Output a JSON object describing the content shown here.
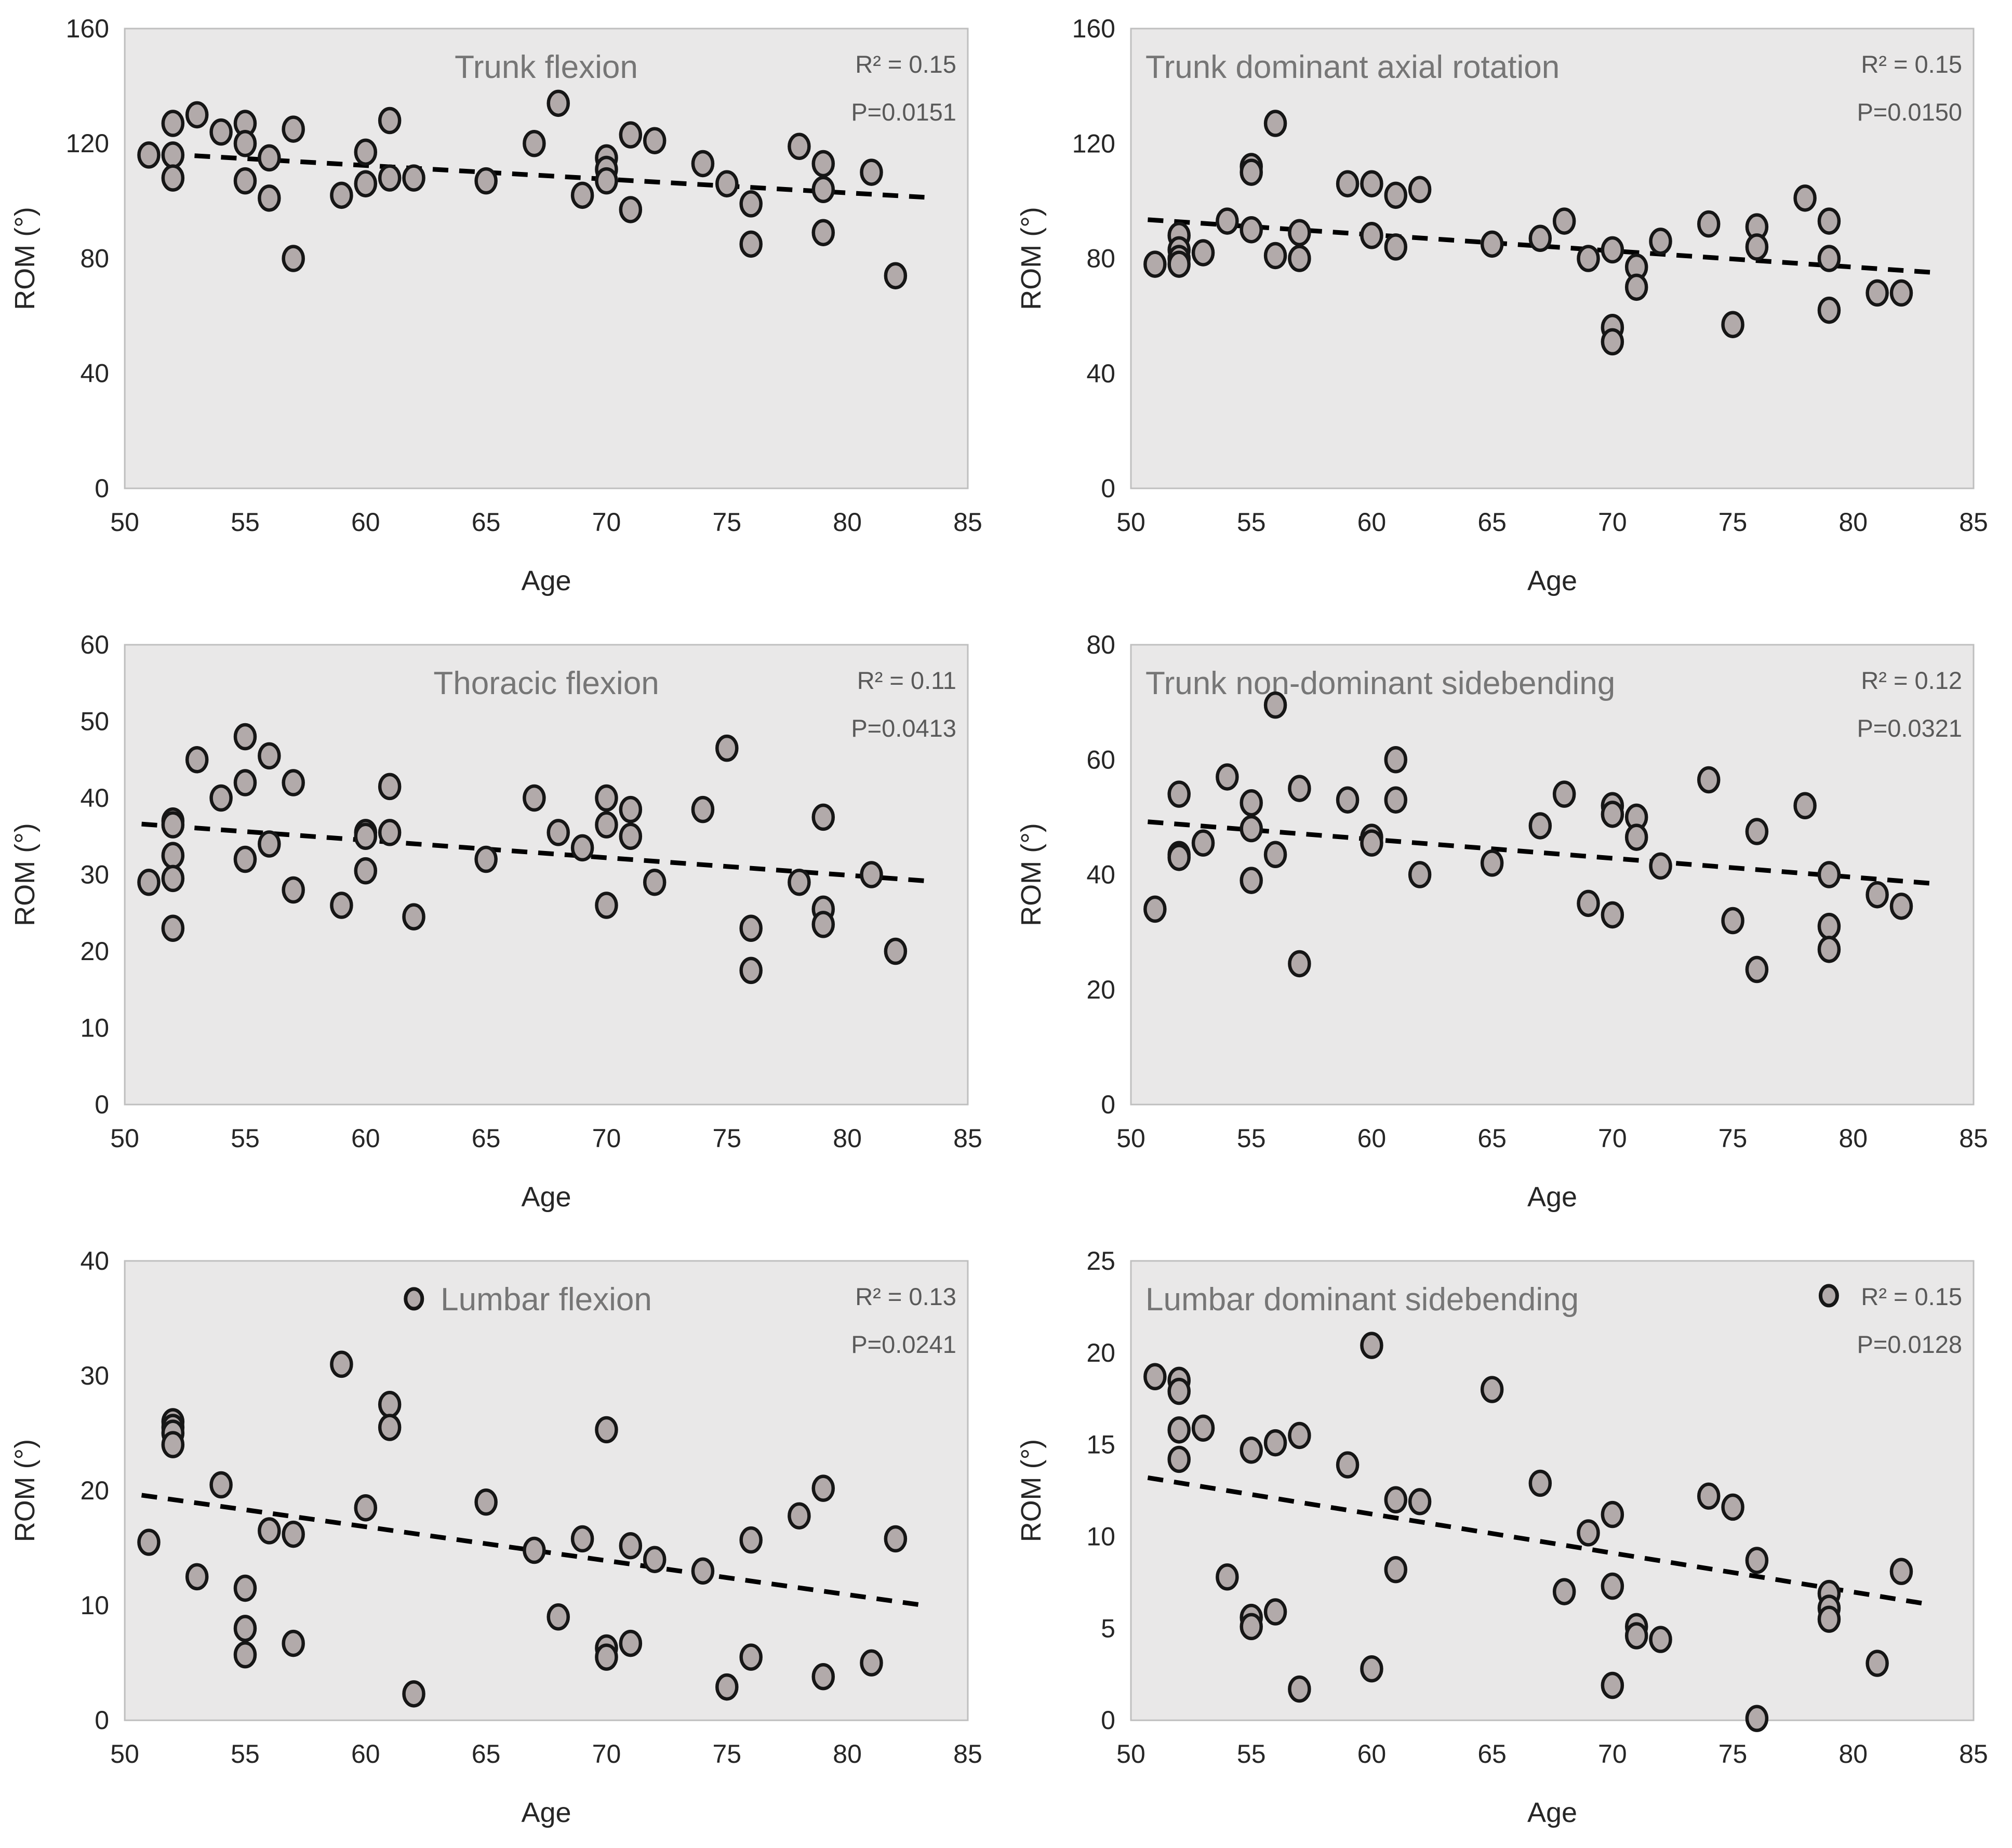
{
  "figure": {
    "type": "scatter-grid",
    "rows": 3,
    "cols": 2,
    "colors": {
      "page_bg": "#ffffff",
      "plot_bg": "#e9e8e8",
      "plot_border": "#bfbfbf",
      "marker_fill": "#b2aaaa",
      "marker_stroke": "#161616",
      "trend_line": "#000000",
      "title_text": "#767676",
      "stats_text": "#595959",
      "tick_text": "#262626"
    }
  },
  "chart_data": [
    {
      "type": "scatter",
      "title": "Trunk flexion",
      "title_align": "center",
      "legend_marker": "none",
      "r2_label": "R² = 0.15",
      "p_label": "P=0.0151",
      "xlabel": "Age",
      "ylabel": "ROM (°)",
      "xlim": [
        50,
        85
      ],
      "ylim": [
        0,
        160
      ],
      "xticks": [
        50,
        55,
        60,
        65,
        70,
        75,
        80,
        85
      ],
      "yticks": [
        0,
        40,
        80,
        120,
        160
      ],
      "grid": false,
      "trend": {
        "style": "dashed",
        "x1": 50.7,
        "y1": 116.8,
        "x2": 83.2,
        "y2": 101.3
      },
      "points": [
        [
          51,
          116
        ],
        [
          52,
          127
        ],
        [
          52,
          116
        ],
        [
          52,
          108
        ],
        [
          53,
          130
        ],
        [
          54,
          124
        ],
        [
          55,
          127
        ],
        [
          55,
          120
        ],
        [
          55,
          107
        ],
        [
          56,
          115
        ],
        [
          56,
          101
        ],
        [
          57,
          125
        ],
        [
          57,
          80
        ],
        [
          59,
          102
        ],
        [
          60,
          117
        ],
        [
          60,
          106
        ],
        [
          61,
          128
        ],
        [
          61,
          108
        ],
        [
          62,
          108
        ],
        [
          65,
          107
        ],
        [
          67,
          120
        ],
        [
          68,
          134
        ],
        [
          69,
          102
        ],
        [
          70,
          115
        ],
        [
          70,
          111
        ],
        [
          70,
          107
        ],
        [
          71,
          123
        ],
        [
          71,
          97
        ],
        [
          72,
          121
        ],
        [
          74,
          113
        ],
        [
          75,
          106
        ],
        [
          76,
          99
        ],
        [
          76,
          85
        ],
        [
          78,
          119
        ],
        [
          79,
          113
        ],
        [
          79,
          104
        ],
        [
          79,
          89
        ],
        [
          81,
          110
        ],
        [
          82,
          74
        ]
      ]
    },
    {
      "type": "scatter",
      "title": "Trunk dominant axial rotation",
      "title_align": "left",
      "legend_marker": "none",
      "r2_label": "R² = 0.15",
      "p_label": "P=0.0150",
      "xlabel": "Age",
      "ylabel": "ROM (°)",
      "xlim": [
        50,
        85
      ],
      "ylim": [
        0,
        160
      ],
      "xticks": [
        50,
        55,
        60,
        65,
        70,
        75,
        80,
        85
      ],
      "yticks": [
        0,
        40,
        80,
        120,
        160
      ],
      "grid": false,
      "trend": {
        "style": "dashed",
        "x1": 50.7,
        "y1": 93.5,
        "x2": 83.2,
        "y2": 75.2
      },
      "points": [
        [
          51,
          78
        ],
        [
          52,
          88
        ],
        [
          52,
          83
        ],
        [
          52,
          80
        ],
        [
          52,
          78
        ],
        [
          53,
          82
        ],
        [
          54,
          93
        ],
        [
          55,
          112
        ],
        [
          55,
          110
        ],
        [
          55,
          90
        ],
        [
          56,
          127
        ],
        [
          56,
          81
        ],
        [
          57,
          89
        ],
        [
          57,
          80
        ],
        [
          59,
          106
        ],
        [
          60,
          106
        ],
        [
          60,
          88
        ],
        [
          61,
          102
        ],
        [
          61,
          84
        ],
        [
          62,
          104
        ],
        [
          65,
          85
        ],
        [
          67,
          87
        ],
        [
          68,
          93
        ],
        [
          69,
          80
        ],
        [
          70,
          83
        ],
        [
          70,
          56
        ],
        [
          70,
          51
        ],
        [
          71,
          77
        ],
        [
          71,
          70
        ],
        [
          72,
          86
        ],
        [
          74,
          92
        ],
        [
          75,
          57
        ],
        [
          76,
          91
        ],
        [
          76,
          84
        ],
        [
          78,
          101
        ],
        [
          79,
          93
        ],
        [
          79,
          80
        ],
        [
          79,
          62
        ],
        [
          81,
          68
        ],
        [
          82,
          68
        ]
      ]
    },
    {
      "type": "scatter",
      "title": "Thoracic flexion",
      "title_align": "center",
      "legend_marker": "none",
      "r2_label": "R² = 0.11",
      "p_label": "P=0.0413",
      "xlabel": "Age",
      "ylabel": "ROM (°)",
      "xlim": [
        50,
        85
      ],
      "ylim": [
        0,
        60
      ],
      "xticks": [
        50,
        55,
        60,
        65,
        70,
        75,
        80,
        85
      ],
      "yticks": [
        0,
        10,
        20,
        30,
        40,
        50,
        60
      ],
      "grid": false,
      "trend": {
        "style": "dashed",
        "x1": 50.7,
        "y1": 36.6,
        "x2": 83.2,
        "y2": 29.2
      },
      "points": [
        [
          51,
          29
        ],
        [
          52,
          37
        ],
        [
          52,
          36.5
        ],
        [
          52,
          32.5
        ],
        [
          52,
          29.5
        ],
        [
          52,
          23
        ],
        [
          53,
          45
        ],
        [
          54,
          40
        ],
        [
          55,
          48
        ],
        [
          55,
          42
        ],
        [
          55,
          32
        ],
        [
          56,
          45.5
        ],
        [
          56,
          34
        ],
        [
          57,
          42
        ],
        [
          57,
          28
        ],
        [
          59,
          26
        ],
        [
          60,
          35.5
        ],
        [
          60,
          35
        ],
        [
          60,
          30.5
        ],
        [
          61,
          41.5
        ],
        [
          61,
          35.5
        ],
        [
          62,
          24.5
        ],
        [
          65,
          32
        ],
        [
          67,
          40
        ],
        [
          68,
          35.5
        ],
        [
          69,
          33.5
        ],
        [
          70,
          40
        ],
        [
          70,
          36.5
        ],
        [
          70,
          26
        ],
        [
          71,
          38.5
        ],
        [
          71,
          35
        ],
        [
          72,
          29
        ],
        [
          74,
          38.5
        ],
        [
          75,
          46.5
        ],
        [
          76,
          23
        ],
        [
          76,
          17.5
        ],
        [
          78,
          29
        ],
        [
          79,
          37.5
        ],
        [
          79,
          25.5
        ],
        [
          79,
          23.5
        ],
        [
          81,
          30
        ],
        [
          82,
          20
        ]
      ]
    },
    {
      "type": "scatter",
      "title": "Trunk non-dominant sidebending",
      "title_align": "left",
      "legend_marker": "none",
      "r2_label": "R² = 0.12",
      "p_label": "P=0.0321",
      "xlabel": "Age",
      "ylabel": "ROM (°)",
      "xlim": [
        50,
        85
      ],
      "ylim": [
        0,
        80
      ],
      "xticks": [
        50,
        55,
        60,
        65,
        70,
        75,
        80,
        85
      ],
      "yticks": [
        0,
        20,
        40,
        60,
        80
      ],
      "grid": false,
      "trend": {
        "style": "dashed",
        "x1": 50.7,
        "y1": 49.2,
        "x2": 83.2,
        "y2": 38.5
      },
      "points": [
        [
          51,
          34
        ],
        [
          52,
          54
        ],
        [
          52,
          43.5
        ],
        [
          52,
          43
        ],
        [
          53,
          45.5
        ],
        [
          54,
          57
        ],
        [
          55,
          52.5
        ],
        [
          55,
          48
        ],
        [
          55,
          39
        ],
        [
          56,
          69.5
        ],
        [
          56,
          43.5
        ],
        [
          57,
          55
        ],
        [
          57,
          24.5
        ],
        [
          59,
          53
        ],
        [
          60,
          46.5
        ],
        [
          60,
          45.5
        ],
        [
          61,
          60
        ],
        [
          61,
          53
        ],
        [
          62,
          40
        ],
        [
          65,
          42
        ],
        [
          67,
          48.5
        ],
        [
          68,
          54
        ],
        [
          69,
          35
        ],
        [
          70,
          52
        ],
        [
          70,
          50.5
        ],
        [
          70,
          33
        ],
        [
          71,
          50
        ],
        [
          71,
          46.5
        ],
        [
          72,
          41.5
        ],
        [
          74,
          56.5
        ],
        [
          75,
          32
        ],
        [
          76,
          47.5
        ],
        [
          76,
          23.5
        ],
        [
          78,
          52
        ],
        [
          79,
          40
        ],
        [
          79,
          31
        ],
        [
          79,
          27
        ],
        [
          81,
          36.5
        ],
        [
          82,
          34.5
        ]
      ]
    },
    {
      "type": "scatter",
      "title": "Lumbar flexion",
      "title_align": "center",
      "legend_marker": "title",
      "r2_label": "R² = 0.13",
      "p_label": "P=0.0241",
      "xlabel": "Age",
      "ylabel": "ROM (°)",
      "xlim": [
        50,
        85
      ],
      "ylim": [
        0,
        40
      ],
      "xticks": [
        50,
        55,
        60,
        65,
        70,
        75,
        80,
        85
      ],
      "yticks": [
        0,
        10,
        20,
        30,
        40
      ],
      "grid": false,
      "trend": {
        "style": "dashed",
        "x1": 50.7,
        "y1": 19.6,
        "x2": 83.2,
        "y2": 10.0
      },
      "points": [
        [
          51,
          15.5
        ],
        [
          52,
          26
        ],
        [
          52,
          25.5
        ],
        [
          52,
          25
        ],
        [
          52,
          24
        ],
        [
          53,
          12.5
        ],
        [
          54,
          20.5
        ],
        [
          55,
          11.5
        ],
        [
          55,
          8
        ],
        [
          55,
          5.7
        ],
        [
          56,
          16.5
        ],
        [
          57,
          16.2
        ],
        [
          57,
          6.7
        ],
        [
          59,
          31
        ],
        [
          60,
          18.5
        ],
        [
          61,
          27.5
        ],
        [
          61,
          25.5
        ],
        [
          62,
          2.3
        ],
        [
          65,
          19
        ],
        [
          67,
          14.8
        ],
        [
          68,
          9
        ],
        [
          69,
          15.8
        ],
        [
          70,
          25.3
        ],
        [
          70,
          6.3
        ],
        [
          70,
          5.5
        ],
        [
          71,
          15.2
        ],
        [
          71,
          6.7
        ],
        [
          72,
          14
        ],
        [
          74,
          13
        ],
        [
          75,
          2.9
        ],
        [
          76,
          15.7
        ],
        [
          76,
          5.5
        ],
        [
          78,
          17.8
        ],
        [
          79,
          20.2
        ],
        [
          79,
          3.8
        ],
        [
          81,
          5
        ],
        [
          82,
          15.8
        ]
      ]
    },
    {
      "type": "scatter",
      "title": "Lumbar dominant sidebending",
      "title_align": "left",
      "legend_marker": "stats",
      "r2_label": "R² = 0.15",
      "p_label": "P=0.0128",
      "xlabel": "Age",
      "ylabel": "ROM (°)",
      "xlim": [
        50,
        85
      ],
      "ylim": [
        0,
        25
      ],
      "xticks": [
        50,
        55,
        60,
        65,
        70,
        75,
        80,
        85
      ],
      "yticks": [
        0,
        5,
        10,
        15,
        20,
        25
      ],
      "grid": false,
      "trend": {
        "style": "dashed",
        "x1": 50.7,
        "y1": 13.2,
        "x2": 83.2,
        "y2": 6.3
      },
      "points": [
        [
          51,
          18.7
        ],
        [
          52,
          18.5
        ],
        [
          52,
          17.9
        ],
        [
          52,
          15.8
        ],
        [
          52,
          14.2
        ],
        [
          53,
          15.9
        ],
        [
          54,
          7.8
        ],
        [
          55,
          14.7
        ],
        [
          55,
          5.6
        ],
        [
          55,
          5.1
        ],
        [
          56,
          15.1
        ],
        [
          56,
          5.9
        ],
        [
          57,
          15.5
        ],
        [
          57,
          1.7
        ],
        [
          59,
          13.9
        ],
        [
          60,
          20.4
        ],
        [
          60,
          2.8
        ],
        [
          61,
          12
        ],
        [
          61,
          8.2
        ],
        [
          62,
          11.9
        ],
        [
          65,
          18
        ],
        [
          67,
          12.9
        ],
        [
          68,
          7
        ],
        [
          69,
          10.2
        ],
        [
          70,
          11.2
        ],
        [
          70,
          7.3
        ],
        [
          70,
          1.9
        ],
        [
          71,
          5.1
        ],
        [
          71,
          4.6
        ],
        [
          72,
          4.4
        ],
        [
          74,
          12.2
        ],
        [
          75,
          11.6
        ],
        [
          76,
          8.7
        ],
        [
          76,
          0.1
        ],
        [
          79,
          6.9
        ],
        [
          79,
          6.1
        ],
        [
          79,
          5.5
        ],
        [
          81,
          3.1
        ],
        [
          82,
          8.1
        ]
      ]
    }
  ]
}
